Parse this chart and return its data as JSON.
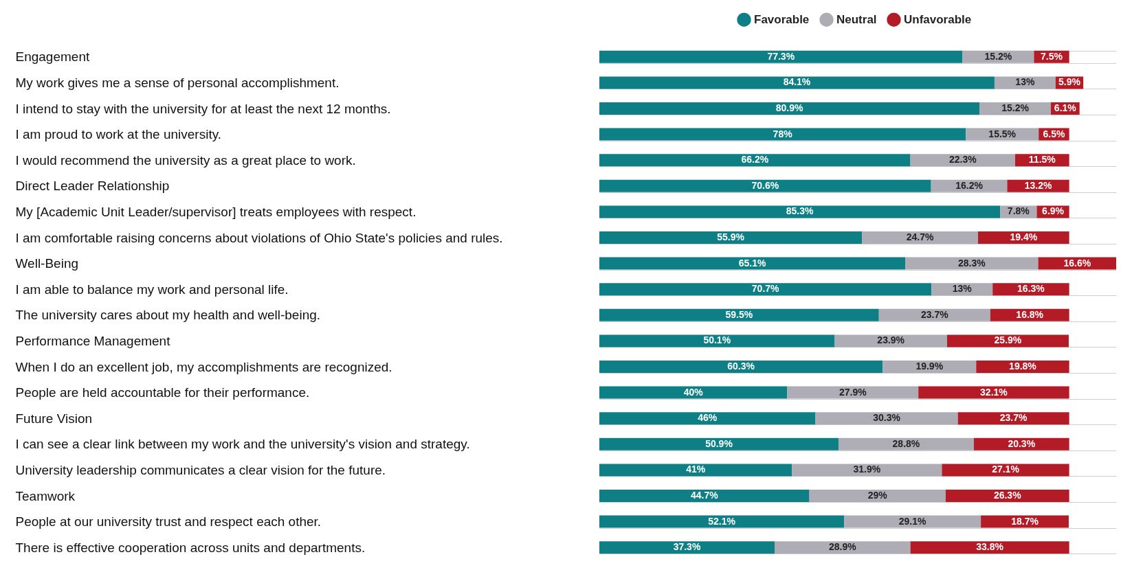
{
  "chart_data": {
    "type": "bar",
    "orientation": "horizontal",
    "stacked": true,
    "legend": "top right",
    "grid": "y",
    "xlim": [
      0,
      110
    ],
    "categories": [
      "Engagement",
      "My work gives me a sense of personal accomplishment.",
      "I intend to stay with the university for at least the next 12 months.",
      "I am proud to work at the university.",
      "I would recommend the university as a great place to work.",
      "Direct Leader Relationship",
      "My [Academic Unit Leader/supervisor] treats employees with respect.",
      "I am comfortable raising concerns about violations of Ohio State's policies and rules.",
      "Well-Being",
      "I am able to balance my work and personal life.",
      "The university cares about my health and well-being.",
      "Performance Management",
      "When I do an excellent job, my accomplishments are recognized.",
      "People are held accountable for their performance.",
      "Future Vision",
      "I can see a clear link between my work and the university's vision and strategy.",
      "University leadership communicates a clear vision for the future.",
      "Teamwork",
      "People at our university trust and respect each other.",
      "There is effective cooperation across units and departments."
    ],
    "series": [
      {
        "name": "Favorable",
        "color": "#0f7f86",
        "values": [
          77.3,
          84.1,
          80.9,
          78,
          66.2,
          70.6,
          85.3,
          55.9,
          65.1,
          70.7,
          59.5,
          50.1,
          60.3,
          40,
          46,
          50.9,
          41,
          44.7,
          52.1,
          37.3
        ],
        "value_labels": [
          "77.3%",
          "84.1%",
          "80.9%",
          "78%",
          "66.2%",
          "70.6%",
          "85.3%",
          "55.9%",
          "65.1%",
          "70.7%",
          "59.5%",
          "50.1%",
          "60.3%",
          "40%",
          "46%",
          "50.9%",
          "41%",
          "44.7%",
          "52.1%",
          "37.3%"
        ]
      },
      {
        "name": "Neutral",
        "color": "#aeadb5",
        "values": [
          15.2,
          13,
          15.2,
          15.5,
          22.3,
          16.2,
          7.8,
          24.7,
          28.3,
          13,
          23.7,
          23.9,
          19.9,
          27.9,
          30.3,
          28.8,
          31.9,
          29,
          29.1,
          28.9
        ],
        "value_labels": [
          "15.2%",
          "13%",
          "15.2%",
          "15.5%",
          "22.3%",
          "16.2%",
          "7.8%",
          "24.7%",
          "28.3%",
          "13%",
          "23.7%",
          "23.9%",
          "19.9%",
          "27.9%",
          "30.3%",
          "28.8%",
          "31.9%",
          "29%",
          "29.1%",
          "28.9%"
        ]
      },
      {
        "name": "Unfavorable",
        "color": "#b31b27",
        "values": [
          7.5,
          5.9,
          6.1,
          6.5,
          11.5,
          13.2,
          6.9,
          19.4,
          16.6,
          16.3,
          16.8,
          25.9,
          19.8,
          32.1,
          23.7,
          20.3,
          27.1,
          26.3,
          18.7,
          33.8
        ],
        "value_labels": [
          "7.5%",
          "5.9%",
          "6.1%",
          "6.5%",
          "11.5%",
          "13.2%",
          "6.9%",
          "19.4%",
          "16.6%",
          "16.3%",
          "16.8%",
          "25.9%",
          "19.8%",
          "32.1%",
          "23.7%",
          "20.3%",
          "27.1%",
          "26.3%",
          "18.7%",
          "33.8%"
        ]
      }
    ]
  }
}
